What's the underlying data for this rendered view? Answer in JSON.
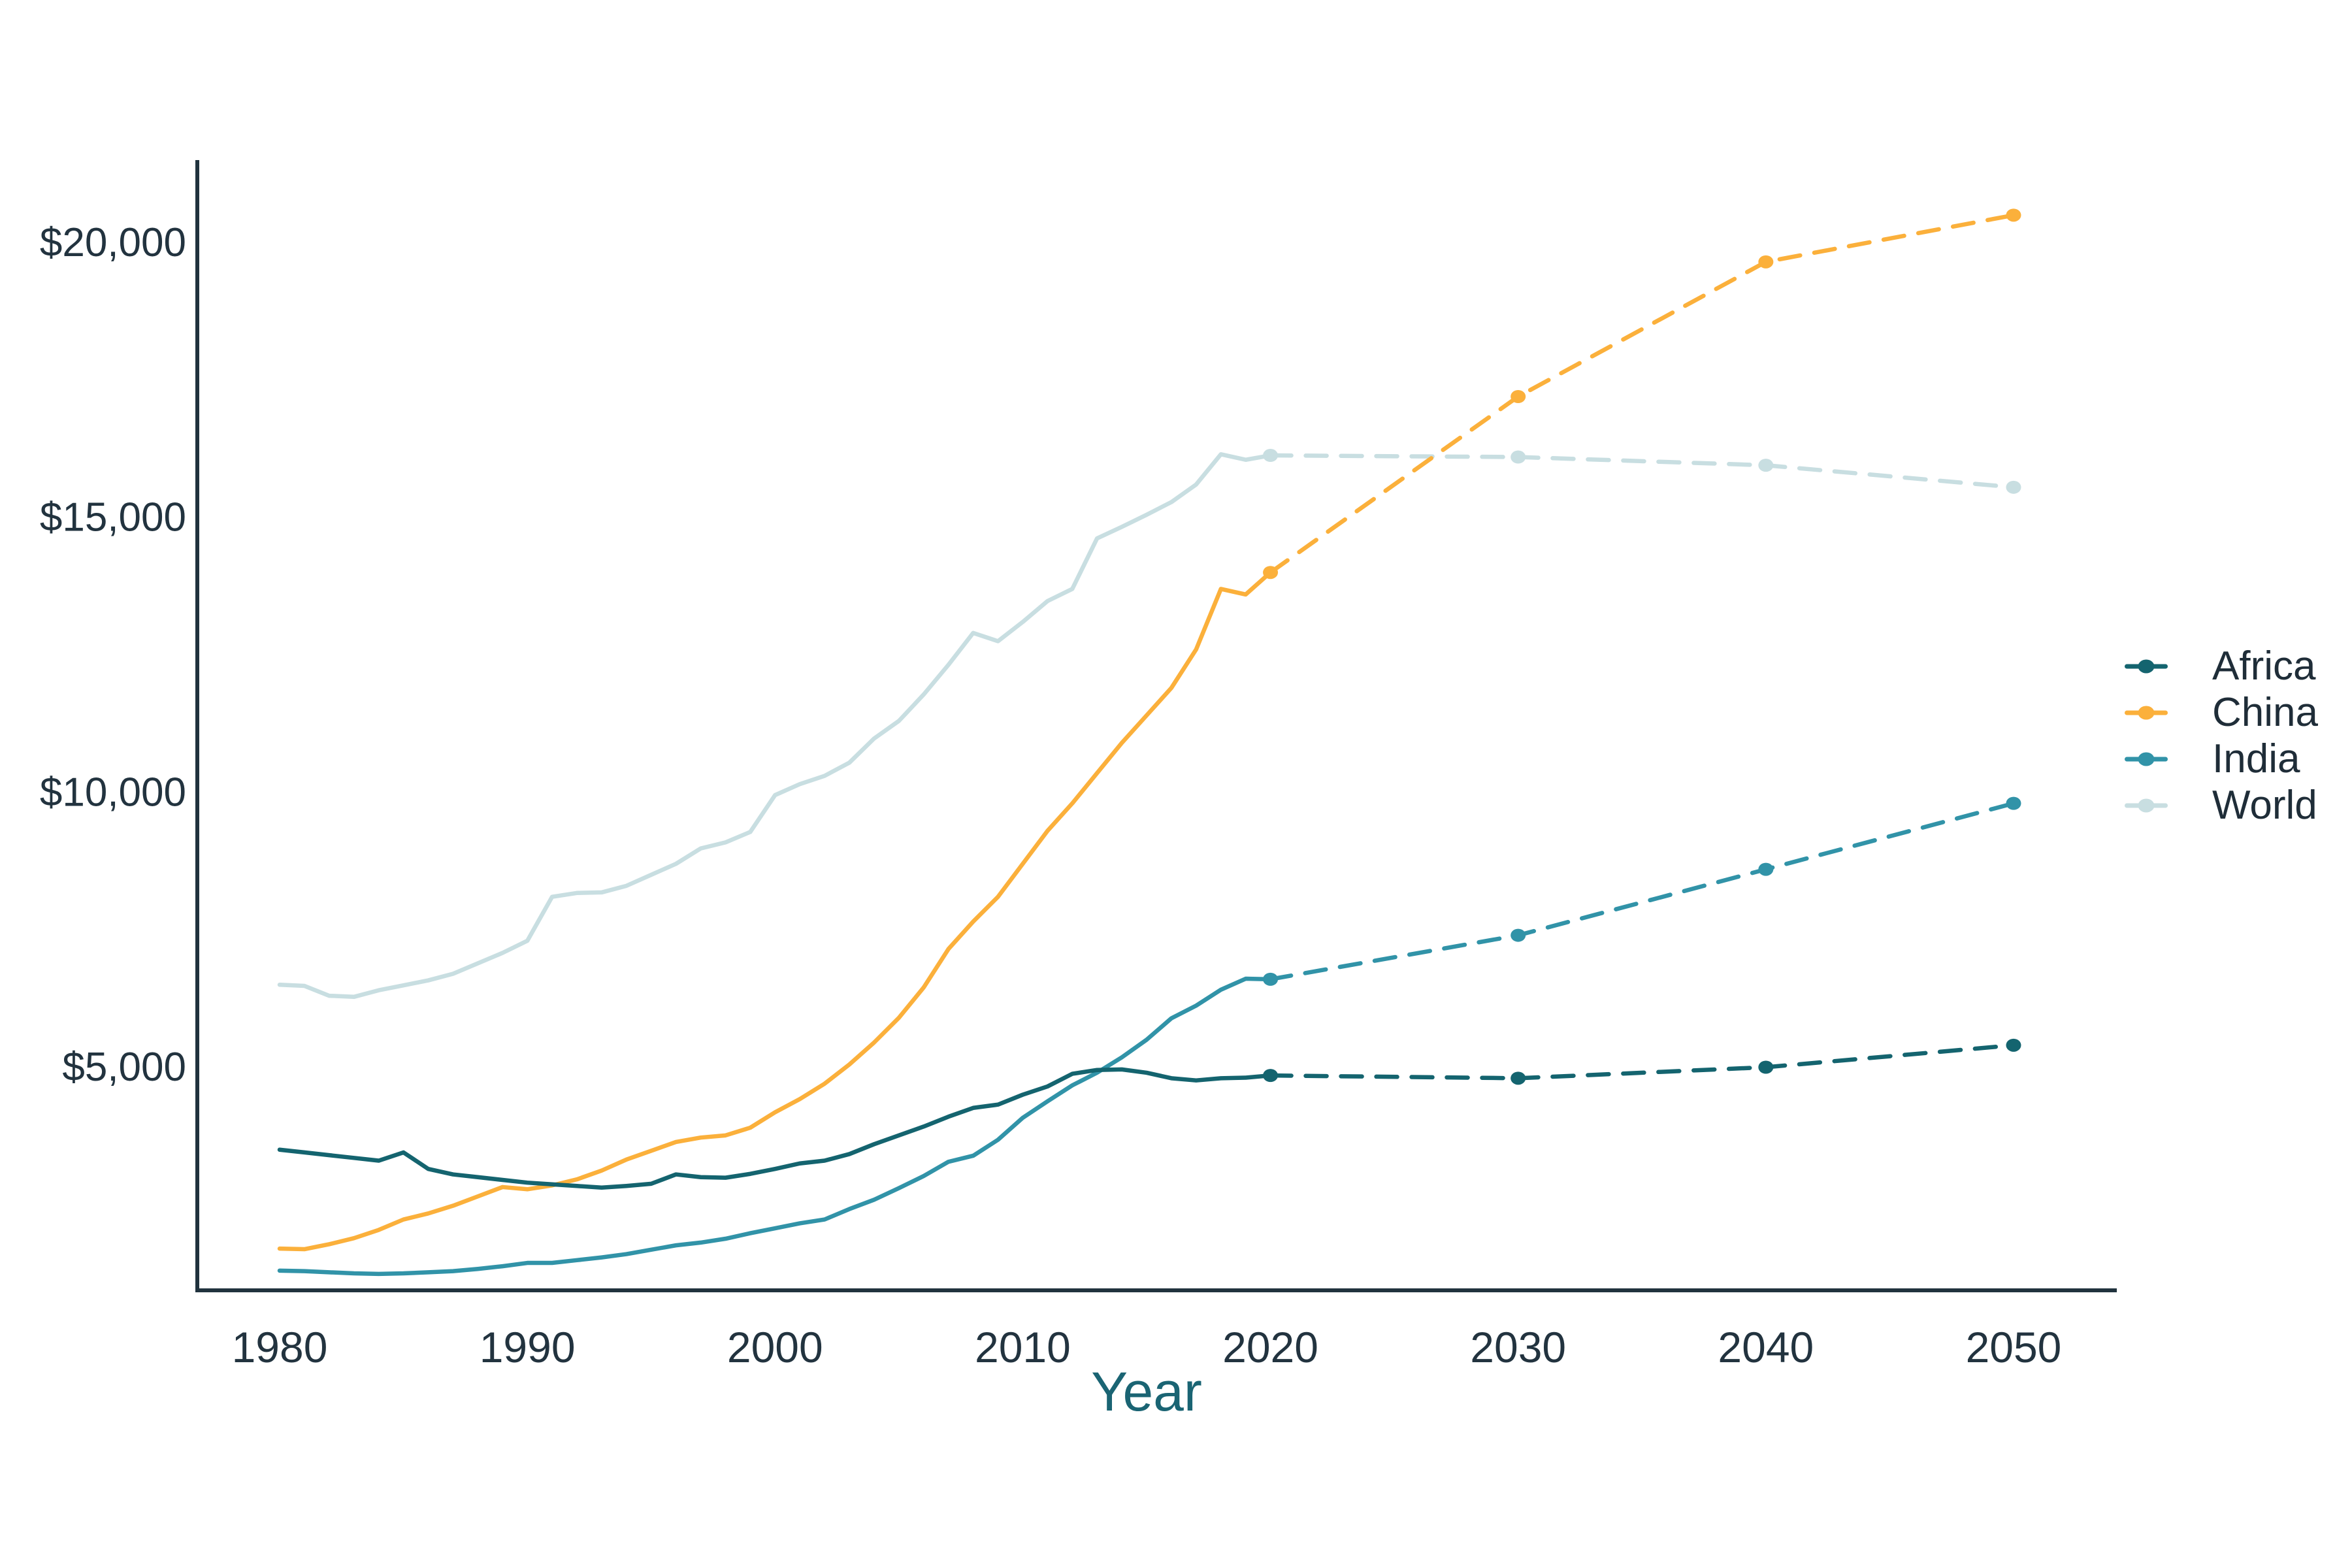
{
  "chart_data": {
    "type": "line",
    "title": "",
    "xlabel": "Year",
    "ylabel": "",
    "unit": "US$ (GDP per capita)",
    "grid": false,
    "legend_position": "right",
    "xlim": [
      1976.7,
      2054.2
    ],
    "ylim": [
      950,
      22100
    ],
    "x_ticks": [
      1980,
      1990,
      2000,
      2010,
      2020,
      2030,
      2040,
      2050
    ],
    "y_ticks": [
      {
        "value": 5000,
        "label": "$5,000"
      },
      {
        "value": 10000,
        "label": "$10,000"
      },
      {
        "value": 15000,
        "label": "$15,000"
      },
      {
        "value": 20000,
        "label": "$20,000"
      }
    ],
    "styles": {
      "history_style": "solid",
      "projection_style": "dashed",
      "projection_markers": "filled-dots",
      "marker_years": [
        2020,
        2030,
        2040,
        2050
      ]
    },
    "history_years": [
      1980,
      1981,
      1982,
      1983,
      1984,
      1985,
      1986,
      1987,
      1988,
      1989,
      1990,
      1991,
      1992,
      1993,
      1994,
      1995,
      1996,
      1997,
      1998,
      1999,
      2000,
      2001,
      2002,
      2003,
      2004,
      2005,
      2006,
      2007,
      2008,
      2009,
      2010,
      2011,
      2012,
      2013,
      2014,
      2015,
      2016,
      2017,
      2018,
      2019,
      2020
    ],
    "series": [
      {
        "name": "Africa",
        "color": "#14646F",
        "history_values": [
          3500,
          3450,
          3400,
          3350,
          3300,
          3450,
          3150,
          3050,
          3000,
          2950,
          2900,
          2870,
          2840,
          2810,
          2840,
          2880,
          3050,
          3000,
          2990,
          3060,
          3150,
          3250,
          3300,
          3420,
          3600,
          3760,
          3920,
          4100,
          4260,
          4320,
          4500,
          4650,
          4880,
          4950,
          4960,
          4900,
          4800,
          4760,
          4800,
          4810,
          4850
        ],
        "projection_years": [
          2020,
          2030,
          2040,
          2050
        ],
        "projection_values": [
          4850,
          4800,
          5000,
          5400
        ]
      },
      {
        "name": "China",
        "color": "#FBB03B",
        "history_values": [
          1700,
          1690,
          1780,
          1890,
          2040,
          2230,
          2340,
          2480,
          2650,
          2820,
          2780,
          2850,
          2960,
          3120,
          3320,
          3480,
          3640,
          3720,
          3760,
          3900,
          4180,
          4420,
          4700,
          5050,
          5450,
          5900,
          6450,
          7150,
          7650,
          8100,
          8700,
          9300,
          9800,
          10350,
          10900,
          11400,
          11900,
          12600,
          13700,
          13600,
          14000
        ],
        "projection_years": [
          2020,
          2030,
          2040,
          2050
        ],
        "projection_values": [
          14000,
          17200,
          19650,
          20500
        ]
      },
      {
        "name": "India",
        "color": "#3193A8",
        "history_values": [
          1300,
          1290,
          1270,
          1250,
          1240,
          1250,
          1270,
          1290,
          1330,
          1380,
          1440,
          1440,
          1490,
          1540,
          1600,
          1680,
          1760,
          1810,
          1880,
          1980,
          2070,
          2160,
          2230,
          2420,
          2590,
          2800,
          3020,
          3280,
          3390,
          3680,
          4080,
          4380,
          4670,
          4900,
          5180,
          5500,
          5890,
          6120,
          6410,
          6610,
          6600
        ],
        "projection_years": [
          2020,
          2030,
          2040,
          2050
        ],
        "projection_values": [
          6600,
          7400,
          8600,
          9800
        ]
      },
      {
        "name": "World",
        "color": "#C8DEE1",
        "history_values": [
          6500,
          6480,
          6300,
          6280,
          6400,
          6490,
          6580,
          6700,
          6890,
          7080,
          7300,
          8100,
          8170,
          8180,
          8300,
          8500,
          8700,
          8980,
          9090,
          9280,
          9950,
          10150,
          10300,
          10540,
          10980,
          11300,
          11780,
          12320,
          12900,
          12750,
          13100,
          13480,
          13700,
          14620,
          14830,
          15050,
          15280,
          15600,
          16150,
          16050,
          16130
        ],
        "projection_years": [
          2020,
          2030,
          2040,
          2050
        ],
        "projection_values": [
          16130,
          16100,
          15950,
          15550
        ]
      }
    ]
  },
  "axis": {
    "line_color": "#21333E",
    "tick_label_color": "#22333F",
    "xlabel_color": "#1A6473"
  },
  "legend": {
    "items": [
      {
        "label": "Africa",
        "color": "#14646F"
      },
      {
        "label": "China",
        "color": "#FBB03B"
      },
      {
        "label": "India",
        "color": "#3193A8"
      },
      {
        "label": "World",
        "color": "#C8DEE1"
      }
    ]
  }
}
